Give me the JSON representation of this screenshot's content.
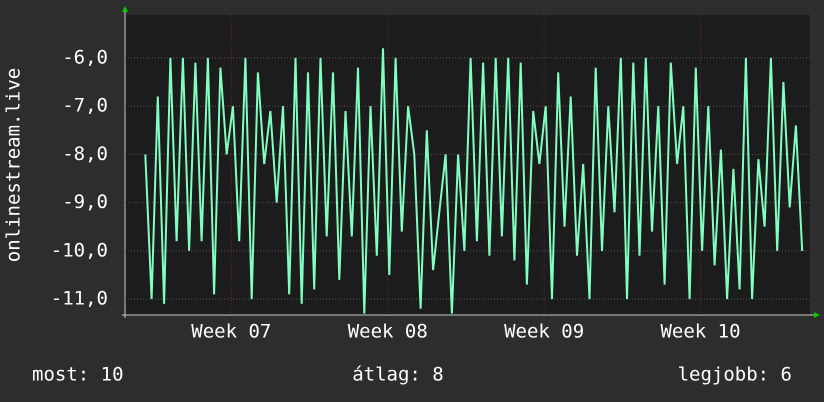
{
  "chart_data": {
    "type": "line",
    "y_label": "onlinestream.live",
    "xlim": [
      6.32,
      10.7
    ],
    "ylim": [
      -11.33,
      -5.11
    ],
    "xticks": [
      {
        "value": 7,
        "label": "Week 07"
      },
      {
        "value": 8,
        "label": "Week 08"
      },
      {
        "value": 9,
        "label": "Week 09"
      },
      {
        "value": 10,
        "label": "Week 10"
      }
    ],
    "yticks": [
      {
        "value": -6,
        "label": "-6,0"
      },
      {
        "value": -7,
        "label": "-7,0"
      },
      {
        "value": -8,
        "label": "-8,0"
      },
      {
        "value": -9,
        "label": "-9,0"
      },
      {
        "value": -10,
        "label": "-10,0"
      },
      {
        "value": -11,
        "label": "-11,0"
      }
    ],
    "grid": true,
    "series": [
      {
        "color": "#80ffc0",
        "x": [
          6.45,
          6.49,
          6.53,
          6.57,
          6.61,
          6.65,
          6.69,
          6.73,
          6.77,
          6.81,
          6.85,
          6.89,
          6.93,
          6.97,
          7.01,
          7.05,
          7.09,
          7.13,
          7.17,
          7.21,
          7.25,
          7.29,
          7.33,
          7.37,
          7.41,
          7.45,
          7.49,
          7.53,
          7.57,
          7.61,
          7.65,
          7.69,
          7.73,
          7.77,
          7.81,
          7.85,
          7.89,
          7.93,
          7.97,
          8.01,
          8.05,
          8.09,
          8.13,
          8.17,
          8.21,
          8.25,
          8.29,
          8.33,
          8.37,
          8.41,
          8.45,
          8.49,
          8.53,
          8.57,
          8.61,
          8.65,
          8.69,
          8.73,
          8.77,
          8.81,
          8.85,
          8.89,
          8.93,
          8.97,
          9.01,
          9.05,
          9.09,
          9.13,
          9.17,
          9.21,
          9.25,
          9.29,
          9.33,
          9.37,
          9.41,
          9.45,
          9.49,
          9.53,
          9.57,
          9.61,
          9.65,
          9.69,
          9.73,
          9.77,
          9.81,
          9.85,
          9.89,
          9.93,
          9.97,
          10.01,
          10.05,
          10.09,
          10.13,
          10.17,
          10.21,
          10.25,
          10.29,
          10.33,
          10.37,
          10.41,
          10.45,
          10.49,
          10.53,
          10.57,
          10.61,
          10.65
        ],
        "values": [
          -8.0,
          -11.0,
          -6.8,
          -11.1,
          -6.0,
          -9.8,
          -6.0,
          -10.0,
          -6.1,
          -9.8,
          -6.0,
          -10.9,
          -6.2,
          -8.0,
          -7.0,
          -9.8,
          -6.0,
          -11.0,
          -6.3,
          -8.2,
          -7.1,
          -9.0,
          -7.0,
          -10.9,
          -6.0,
          -11.1,
          -6.3,
          -10.8,
          -6.0,
          -9.7,
          -6.3,
          -10.6,
          -7.1,
          -9.7,
          -6.2,
          -11.3,
          -7.0,
          -10.1,
          -5.8,
          -10.5,
          -6.0,
          -9.6,
          -7.0,
          -8.0,
          -11.2,
          -7.5,
          -10.4,
          -9.2,
          -8.0,
          -11.3,
          -8.0,
          -10.0,
          -6.0,
          -9.8,
          -6.1,
          -10.1,
          -6.0,
          -9.7,
          -6.0,
          -10.2,
          -6.1,
          -10.7,
          -7.1,
          -8.2,
          -7.0,
          -11.0,
          -6.3,
          -9.5,
          -6.8,
          -10.1,
          -8.2,
          -11.0,
          -6.2,
          -10.0,
          -7.0,
          -9.2,
          -6.0,
          -11.0,
          -6.1,
          -10.1,
          -6.0,
          -9.6,
          -7.0,
          -10.7,
          -6.1,
          -8.2,
          -7.0,
          -11.0,
          -6.2,
          -10.0,
          -7.0,
          -10.3,
          -7.9,
          -11.0,
          -8.3,
          -10.8,
          -6.0,
          -11.0,
          -8.1,
          -9.5,
          -6.0,
          -10.0,
          -6.5,
          -9.1,
          -7.4,
          -10.0
        ]
      }
    ],
    "stats": [
      "most: 10",
      "átlag: 8",
      "legjobb: 6"
    ]
  }
}
